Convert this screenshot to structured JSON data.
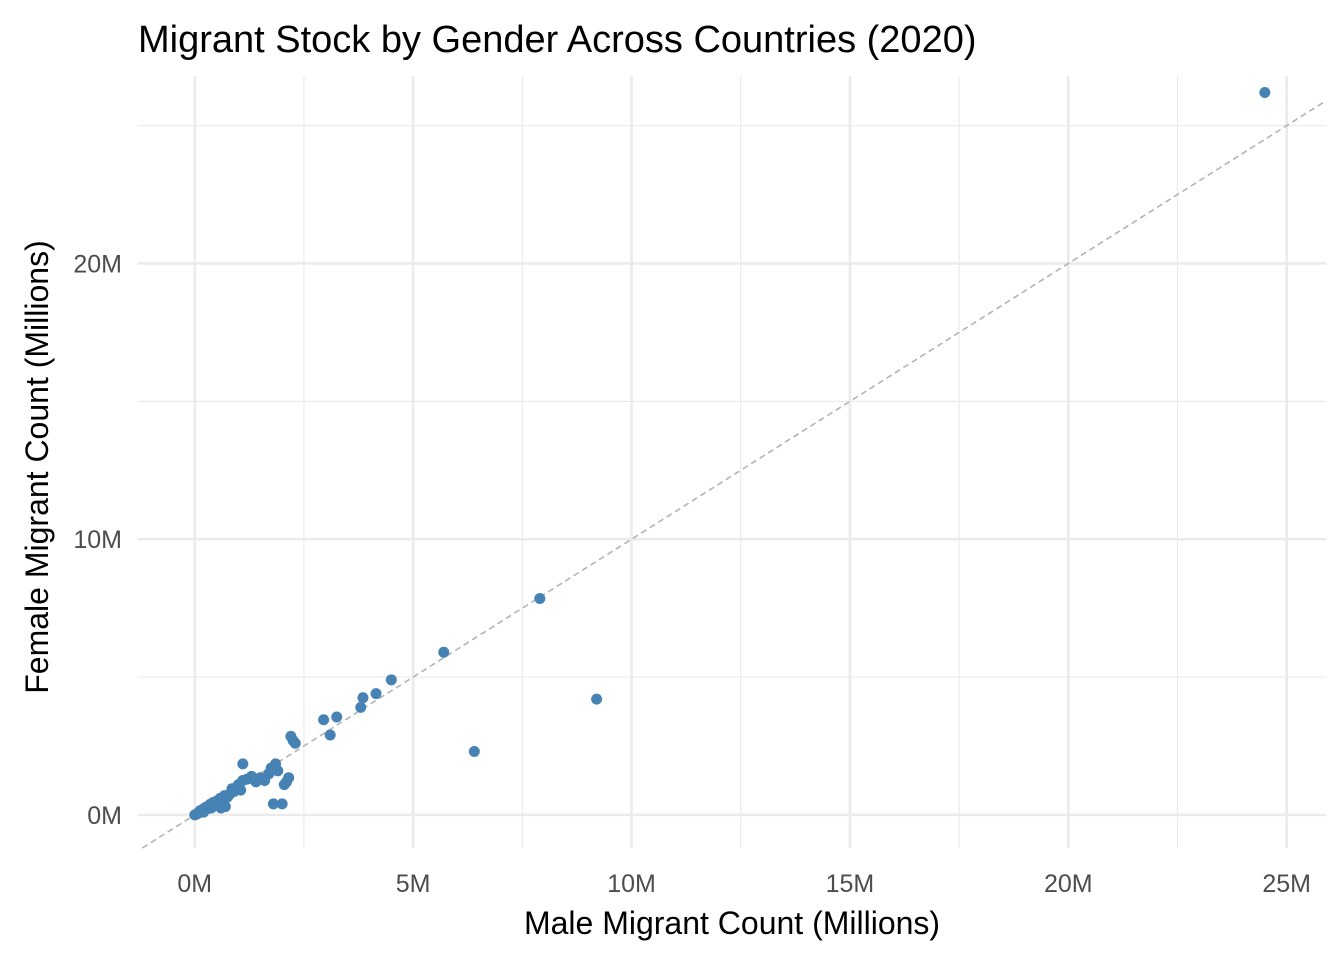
{
  "chart_data": {
    "type": "scatter",
    "title": "Migrant Stock by Gender Across Countries (2020)",
    "xlabel": "Male Migrant Count (Millions)",
    "ylabel": "Female Migrant Count (Millions)",
    "xlim": [
      -1.3,
      25.9
    ],
    "ylim": [
      -1.2,
      26.8
    ],
    "x_ticks": [
      0,
      5,
      10,
      15,
      20,
      25
    ],
    "x_tick_labels": [
      "0M",
      "5M",
      "10M",
      "15M",
      "20M",
      "25M"
    ],
    "y_ticks": [
      0,
      10,
      20
    ],
    "y_tick_labels": [
      "0M",
      "10M",
      "20M"
    ],
    "grid": true,
    "reference_line": {
      "slope": 1,
      "intercept": 0,
      "style": "dashed",
      "color": "#b3b3b3"
    },
    "point_color": "#4682b4",
    "points": [
      {
        "x": 0.0,
        "y": 0.0
      },
      {
        "x": 0.03,
        "y": 0.02
      },
      {
        "x": 0.06,
        "y": 0.05
      },
      {
        "x": 0.1,
        "y": 0.08
      },
      {
        "x": 0.12,
        "y": 0.15
      },
      {
        "x": 0.15,
        "y": 0.12
      },
      {
        "x": 0.18,
        "y": 0.2
      },
      {
        "x": 0.2,
        "y": 0.1
      },
      {
        "x": 0.25,
        "y": 0.28
      },
      {
        "x": 0.28,
        "y": 0.22
      },
      {
        "x": 0.32,
        "y": 0.3
      },
      {
        "x": 0.35,
        "y": 0.38
      },
      {
        "x": 0.38,
        "y": 0.25
      },
      {
        "x": 0.42,
        "y": 0.45
      },
      {
        "x": 0.45,
        "y": 0.35
      },
      {
        "x": 0.5,
        "y": 0.5
      },
      {
        "x": 0.55,
        "y": 0.4
      },
      {
        "x": 0.58,
        "y": 0.6
      },
      {
        "x": 0.6,
        "y": 0.25
      },
      {
        "x": 0.65,
        "y": 0.55
      },
      {
        "x": 0.68,
        "y": 0.7
      },
      {
        "x": 0.7,
        "y": 0.3
      },
      {
        "x": 0.75,
        "y": 0.65
      },
      {
        "x": 0.8,
        "y": 0.75
      },
      {
        "x": 0.85,
        "y": 0.95
      },
      {
        "x": 0.9,
        "y": 0.85
      },
      {
        "x": 0.95,
        "y": 1.0
      },
      {
        "x": 1.0,
        "y": 1.1
      },
      {
        "x": 1.05,
        "y": 0.9
      },
      {
        "x": 1.1,
        "y": 1.25
      },
      {
        "x": 1.1,
        "y": 1.85
      },
      {
        "x": 1.2,
        "y": 1.3
      },
      {
        "x": 1.3,
        "y": 1.4
      },
      {
        "x": 1.4,
        "y": 1.2
      },
      {
        "x": 1.5,
        "y": 1.35
      },
      {
        "x": 1.6,
        "y": 1.25
      },
      {
        "x": 1.7,
        "y": 1.5
      },
      {
        "x": 1.75,
        "y": 1.7
      },
      {
        "x": 1.8,
        "y": 0.4
      },
      {
        "x": 1.85,
        "y": 1.85
      },
      {
        "x": 1.9,
        "y": 1.6
      },
      {
        "x": 2.0,
        "y": 0.4
      },
      {
        "x": 2.05,
        "y": 1.1
      },
      {
        "x": 2.1,
        "y": 1.2
      },
      {
        "x": 2.15,
        "y": 1.35
      },
      {
        "x": 2.2,
        "y": 2.85
      },
      {
        "x": 2.25,
        "y": 2.7
      },
      {
        "x": 2.3,
        "y": 2.6
      },
      {
        "x": 2.95,
        "y": 3.45
      },
      {
        "x": 3.1,
        "y": 2.9
      },
      {
        "x": 3.25,
        "y": 3.55
      },
      {
        "x": 3.8,
        "y": 3.9
      },
      {
        "x": 3.85,
        "y": 4.25
      },
      {
        "x": 4.15,
        "y": 4.4
      },
      {
        "x": 4.5,
        "y": 4.9
      },
      {
        "x": 5.7,
        "y": 5.9
      },
      {
        "x": 6.4,
        "y": 2.3
      },
      {
        "x": 7.9,
        "y": 7.85
      },
      {
        "x": 9.2,
        "y": 4.2
      },
      {
        "x": 24.5,
        "y": 26.2
      }
    ]
  }
}
